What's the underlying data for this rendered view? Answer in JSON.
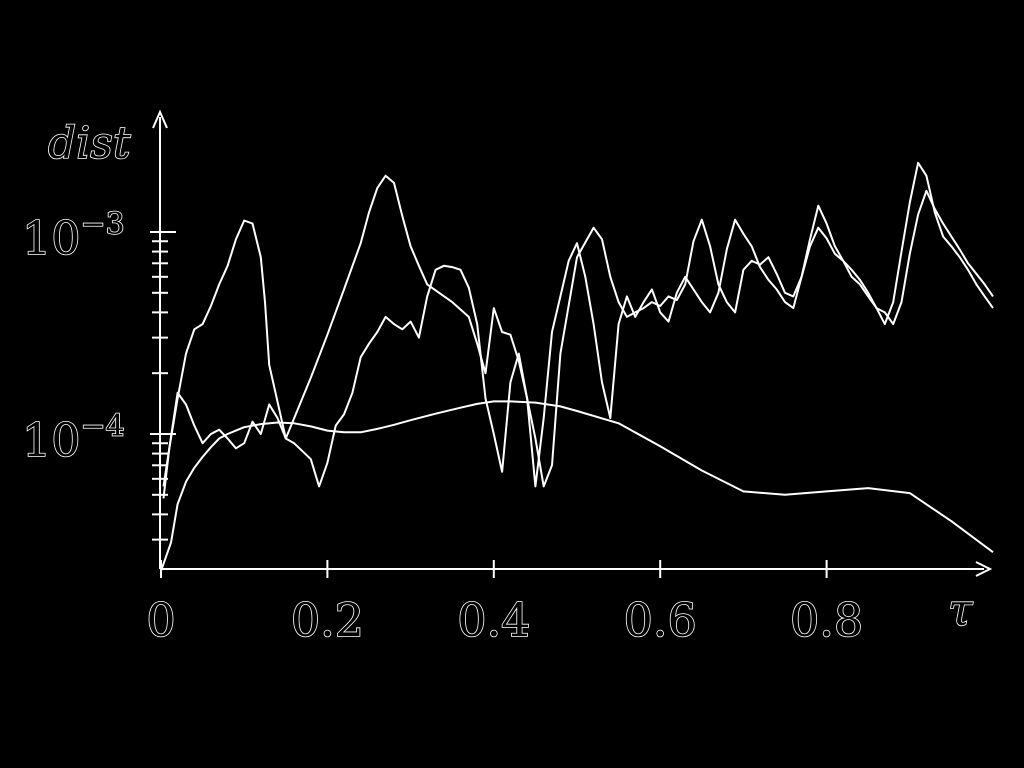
{
  "chart_data": {
    "type": "line",
    "title": "",
    "xlabel": "τ",
    "ylabel": "dist",
    "y_scale": "log",
    "xlim": [
      0,
      1.0
    ],
    "ylim": [
      2.1e-05,
      0.0019
    ],
    "x_ticks": [
      {
        "value": 0,
        "label": "0"
      },
      {
        "value": 0.2,
        "label": "0.2"
      },
      {
        "value": 0.4,
        "label": "0.4"
      },
      {
        "value": 0.6,
        "label": "0.6"
      },
      {
        "value": 0.8,
        "label": "0.8"
      }
    ],
    "y_ticks": [
      {
        "value": 0.0001,
        "base": "10",
        "exponent": "−4"
      },
      {
        "value": 0.001,
        "base": "10",
        "exponent": "−3"
      }
    ],
    "grid": false,
    "legend": "none",
    "line_color": "#ffffff",
    "background": "#000000",
    "series": [
      {
        "x": [
          0,
          0.012,
          0.02,
          0.03,
          0.04,
          0.05,
          0.06,
          0.07,
          0.08,
          0.09,
          0.1,
          0.11,
          0.12,
          0.14,
          0.16,
          0.18,
          0.2,
          0.22,
          0.24,
          0.26,
          0.28,
          0.3,
          0.33,
          0.36,
          0.38,
          0.4,
          0.42,
          0.45,
          0.48,
          0.5,
          0.55,
          0.6,
          0.65,
          0.7,
          0.75,
          0.8,
          0.85,
          0.9,
          0.95,
          1.0
        ],
        "y": [
          2.1e-05,
          2.9e-05,
          4.5e-05,
          5.8e-05,
          6.8e-05,
          7.7e-05,
          8.6e-05,
          9.5e-05,
          0.0001,
          0.000104,
          0.000108,
          0.00011,
          0.000112,
          0.000114,
          0.000113,
          0.000109,
          0.000104,
          0.000102,
          0.000102,
          0.000106,
          0.000111,
          0.000117,
          0.000126,
          0.000135,
          0.000141,
          0.000145,
          0.000145,
          0.000143,
          0.000137,
          0.00013,
          0.000113,
          8.7e-05,
          6.6e-05,
          5.2e-05,
          5e-05,
          5.2e-05,
          5.4e-05,
          5.1e-05,
          3.7e-05,
          2.6e-05
        ]
      },
      {
        "x": [
          0.003,
          0.01,
          0.02,
          0.03,
          0.04,
          0.05,
          0.06,
          0.07,
          0.08,
          0.09,
          0.1,
          0.11,
          0.12,
          0.125,
          0.13,
          0.15,
          0.18,
          0.2,
          0.22,
          0.24,
          0.25,
          0.26,
          0.27,
          0.28,
          0.29,
          0.3,
          0.31,
          0.32,
          0.35,
          0.37,
          0.38,
          0.39,
          0.4,
          0.41,
          0.42,
          0.43,
          0.44,
          0.45,
          0.46,
          0.47,
          0.48,
          0.5,
          0.52,
          0.53,
          0.54,
          0.55,
          0.56,
          0.57,
          0.58,
          0.59,
          0.6,
          0.61,
          0.62,
          0.63,
          0.64,
          0.65,
          0.66,
          0.67,
          0.68,
          0.69,
          0.7,
          0.71,
          0.72,
          0.73,
          0.74,
          0.75,
          0.76,
          0.77,
          0.78,
          0.79,
          0.8,
          0.81,
          0.82,
          0.83,
          0.84,
          0.85,
          0.86,
          0.87,
          0.88,
          0.89,
          0.9,
          0.91,
          0.92,
          0.93,
          0.94,
          0.95,
          0.96,
          0.97,
          0.98,
          0.99,
          1.0
        ],
        "y": [
          5.5e-05,
          8.5e-05,
          0.00015,
          0.00025,
          0.00033,
          0.00035,
          0.00043,
          0.00055,
          0.00068,
          0.00092,
          0.00114,
          0.0011,
          0.00075,
          0.00045,
          0.00022,
          9.5e-05,
          0.00019,
          0.00031,
          0.00052,
          0.00088,
          0.00125,
          0.00165,
          0.0019,
          0.00175,
          0.0012,
          0.00085,
          0.00068,
          0.00055,
          0.00045,
          0.00038,
          0.00028,
          0.0002,
          0.00042,
          0.00032,
          0.00031,
          0.00023,
          0.00015,
          9.5e-05,
          5.5e-05,
          7e-05,
          0.00025,
          0.00075,
          0.00105,
          0.00092,
          0.0006,
          0.00045,
          0.00038,
          0.0004,
          0.00042,
          0.00045,
          0.00043,
          0.00048,
          0.00046,
          0.00055,
          0.0009,
          0.00115,
          0.00085,
          0.00055,
          0.00045,
          0.0004,
          0.00065,
          0.00072,
          0.00069,
          0.00075,
          0.00062,
          0.0005,
          0.00048,
          0.0006,
          0.00085,
          0.00105,
          0.00093,
          0.00078,
          0.00072,
          0.0006,
          0.00055,
          0.00048,
          0.00042,
          0.00035,
          0.00045,
          0.0008,
          0.0014,
          0.0022,
          0.0019,
          0.00125,
          0.00095,
          0.00085,
          0.00075,
          0.00065,
          0.00055,
          0.00048,
          0.00042
        ]
      },
      {
        "x": [
          0.003,
          0.01,
          0.02,
          0.03,
          0.04,
          0.05,
          0.06,
          0.07,
          0.08,
          0.09,
          0.1,
          0.11,
          0.12,
          0.13,
          0.14,
          0.15,
          0.16,
          0.18,
          0.19,
          0.2,
          0.21,
          0.22,
          0.23,
          0.24,
          0.25,
          0.26,
          0.27,
          0.28,
          0.29,
          0.3,
          0.31,
          0.32,
          0.33,
          0.34,
          0.35,
          0.36,
          0.37,
          0.38,
          0.39,
          0.4,
          0.41,
          0.42,
          0.43,
          0.44,
          0.45,
          0.46,
          0.47,
          0.48,
          0.49,
          0.5,
          0.51,
          0.52,
          0.53,
          0.54,
          0.55,
          0.56,
          0.57,
          0.58,
          0.59,
          0.6,
          0.61,
          0.62,
          0.63,
          0.64,
          0.65,
          0.66,
          0.67,
          0.68,
          0.69,
          0.7,
          0.71,
          0.72,
          0.73,
          0.74,
          0.75,
          0.76,
          0.77,
          0.78,
          0.79,
          0.8,
          0.81,
          0.82,
          0.83,
          0.84,
          0.85,
          0.86,
          0.87,
          0.88,
          0.89,
          0.9,
          0.91,
          0.92,
          0.93,
          0.94,
          0.95,
          0.96,
          0.97,
          0.98,
          0.99,
          1.0
        ],
        "y": [
          4.8e-05,
          8.5e-05,
          0.00016,
          0.00014,
          0.00011,
          9e-05,
          0.0001,
          0.000105,
          9.5e-05,
          8.5e-05,
          9e-05,
          0.000115,
          0.0001,
          0.00014,
          0.00012,
          9.5e-05,
          9e-05,
          7.5e-05,
          5.5e-05,
          7.2e-05,
          0.00011,
          0.000125,
          0.00016,
          0.00024,
          0.00028,
          0.00032,
          0.00038,
          0.00035,
          0.00033,
          0.00036,
          0.0003,
          0.00048,
          0.00065,
          0.00068,
          0.00067,
          0.00065,
          0.00053,
          0.00035,
          0.00015,
          0.0001,
          6.5e-05,
          0.00018,
          0.00025,
          0.00015,
          5.5e-05,
          0.00012,
          0.00032,
          0.00048,
          0.00072,
          0.00088,
          0.0006,
          0.00035,
          0.00018,
          0.00012,
          0.00035,
          0.00048,
          0.00038,
          0.00045,
          0.00052,
          0.0004,
          0.00036,
          0.0005,
          0.0006,
          0.00052,
          0.00045,
          0.0004,
          0.0005,
          0.00082,
          0.00115,
          0.00098,
          0.00085,
          0.00067,
          0.00058,
          0.00052,
          0.00045,
          0.00042,
          0.0006,
          0.00092,
          0.00135,
          0.0011,
          0.00085,
          0.00072,
          0.00065,
          0.00058,
          0.0005,
          0.00042,
          0.0004,
          0.00035,
          0.00045,
          0.00078,
          0.00122,
          0.0016,
          0.0013,
          0.0011,
          0.00095,
          0.00082,
          0.0007,
          0.00062,
          0.00055,
          0.00048
        ]
      }
    ]
  }
}
